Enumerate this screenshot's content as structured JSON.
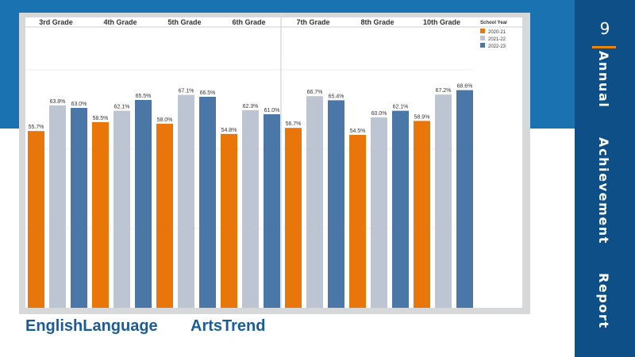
{
  "page_number": "9",
  "side_title": [
    "Annual",
    "Achievement",
    "Report"
  ],
  "footer": {
    "left": "EnglishLanguage",
    "right": "ArtsTrend"
  },
  "colors": {
    "band": "#1a73b0",
    "panel": "#0d4f86",
    "accent": "#e8850c",
    "title": "#1a5c9a"
  },
  "chart_data": {
    "type": "bar",
    "categories": [
      "3rd Grade",
      "4th Grade",
      "5th Grade",
      "6th Grade",
      "7th Grade",
      "8th Grade",
      "10th Grade"
    ],
    "legend_title": "School Year",
    "legend_position": "top-right",
    "series": [
      {
        "name": "2020-21",
        "color": "#e8760b",
        "values": [
          55.7,
          58.5,
          58.0,
          54.8,
          56.7,
          54.5,
          58.9
        ]
      },
      {
        "name": "2021-22",
        "color": "#bcc5d1",
        "values": [
          63.8,
          62.1,
          67.1,
          62.3,
          66.7,
          60.0,
          67.2
        ]
      },
      {
        "name": "2022-23",
        "color": "#4a76a8",
        "values": [
          63.0,
          65.5,
          66.5,
          61.0,
          65.4,
          62.1,
          68.6
        ]
      }
    ],
    "value_labels": [
      [
        "55.7%",
        "63.8%",
        "63.0%"
      ],
      [
        "58.5%",
        "62.1%",
        "65.5%"
      ],
      [
        "58.0%",
        "67.1%",
        "66.5%"
      ],
      [
        "54.8%",
        "62.3%",
        "61.0%"
      ],
      [
        "56.7%",
        "66.7%",
        "65.4%"
      ],
      [
        "54.5%",
        "60.0%",
        "62.1%"
      ],
      [
        "58.9%",
        "67.2%",
        "68.6%"
      ]
    ],
    "ylim": [
      0,
      100
    ],
    "grid": true,
    "xlabel": "",
    "ylabel": ""
  }
}
